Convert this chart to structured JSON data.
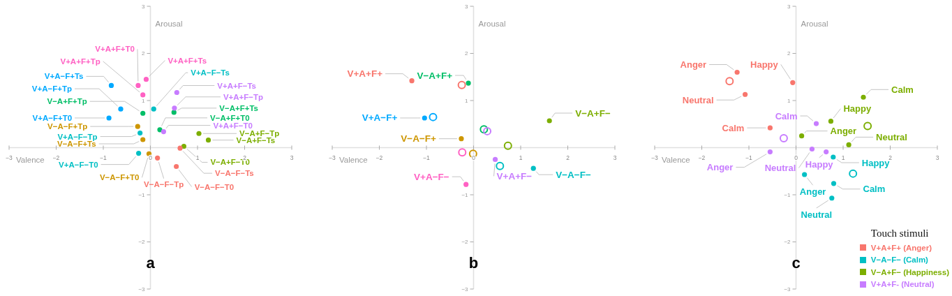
{
  "chart_data": [
    {
      "type": "scatter",
      "xlabel": "Valence",
      "ylabel": "Arousal",
      "xlim": [
        -3,
        3
      ],
      "ylim": [
        -3,
        3
      ],
      "xticks": [
        -3,
        -2,
        -1,
        0,
        1,
        2,
        3
      ],
      "yticks": [
        -3,
        -2,
        -1,
        1,
        2,
        3
      ],
      "marker": "circle",
      "series": [
        {
          "color": "#ff61c3",
          "x": [
            -0.26,
            -0.09,
            -0.16
          ],
          "values": [
            1.32,
            1.45,
            1.12
          ]
        },
        {
          "color": "#00a9ff",
          "x": [
            -0.83,
            -0.63,
            -0.88
          ],
          "values": [
            1.32,
            0.82,
            0.63
          ]
        },
        {
          "color": "#00be67",
          "x": [
            -0.16,
            0.5,
            0.2
          ],
          "values": [
            0.73,
            0.75,
            0.38
          ]
        },
        {
          "color": "#00bfc4",
          "x": [
            0.07,
            -0.22,
            -0.25
          ],
          "values": [
            0.82,
            0.31,
            -0.12
          ]
        },
        {
          "color": "#c77cff",
          "x": [
            0.56,
            0.51,
            0.28
          ],
          "values": [
            1.17,
            0.84,
            0.34
          ]
        },
        {
          "color": "#cd9600",
          "x": [
            -0.27,
            -0.16,
            -0.03
          ],
          "values": [
            0.45,
            0.17,
            -0.13
          ]
        },
        {
          "color": "#7cae00",
          "x": [
            1.03,
            1.23,
            0.71
          ],
          "values": [
            0.3,
            0.16,
            0.03
          ]
        },
        {
          "color": "#f8766d",
          "x": [
            0.63,
            0.15,
            0.55
          ],
          "values": [
            -0.01,
            -0.22,
            -0.4
          ]
        }
      ],
      "annotations": [
        {
          "text": "V+A+F+T0",
          "x": -0.26,
          "y": 1.32
        },
        {
          "text": "V+A+F+Ts",
          "x": -0.09,
          "y": 1.45
        },
        {
          "text": "V+A+F+Tp",
          "x": -0.16,
          "y": 1.12
        },
        {
          "text": "V+A−F+Ts",
          "x": -0.83,
          "y": 1.32
        },
        {
          "text": "V+A−F+Tp",
          "x": -0.63,
          "y": 0.82
        },
        {
          "text": "V+A−F+T0",
          "x": -0.88,
          "y": 0.63
        },
        {
          "text": "V−A+F+Tp",
          "x": -0.16,
          "y": 0.73
        },
        {
          "text": "V+A−F−Ts",
          "x": 0.07,
          "y": 0.82
        },
        {
          "text": "V+A+F−Ts",
          "x": 0.56,
          "y": 1.17
        },
        {
          "text": "V+A+F−Tp",
          "x": 0.51,
          "y": 0.84
        },
        {
          "text": "V−A+F+Ts",
          "x": 0.5,
          "y": 0.75
        },
        {
          "text": "V−A+F+T0",
          "x": 0.2,
          "y": 0.38
        },
        {
          "text": "V+A+F−T0",
          "x": 0.28,
          "y": 0.34
        },
        {
          "text": "V−A−F+Tp",
          "x": -0.27,
          "y": 0.45
        },
        {
          "text": "V+A−F−Tp",
          "x": -0.22,
          "y": 0.31
        },
        {
          "text": "V−A−F+Ts",
          "x": -0.16,
          "y": 0.17
        },
        {
          "text": "V−A+F−Tp",
          "x": 1.03,
          "y": 0.3
        },
        {
          "text": "V−A+F−Ts",
          "x": 1.23,
          "y": 0.16
        },
        {
          "text": "V−A+F−T0",
          "x": 0.71,
          "y": 0.03
        },
        {
          "text": "V−A−F−Ts",
          "x": 0.63,
          "y": -0.01
        },
        {
          "text": "V+A−F−T0",
          "x": -0.25,
          "y": -0.12
        },
        {
          "text": "V−A−F+T0",
          "x": -0.03,
          "y": -0.13
        },
        {
          "text": "V−A−F−Tp",
          "x": 0.15,
          "y": -0.22
        },
        {
          "text": "V−A−F−T0",
          "x": 0.55,
          "y": -0.4
        },
        "a"
      ]
    },
    {
      "type": "scatter",
      "xlabel": "Valence",
      "ylabel": "Arousal",
      "xlim": [
        -3,
        3
      ],
      "ylim": [
        -3,
        3
      ],
      "xticks": [
        -3,
        -2,
        -1,
        0,
        1,
        2,
        3
      ],
      "yticks": [
        -3,
        -2,
        -1,
        1,
        2,
        3
      ],
      "marker": "circle",
      "series": [
        {
          "color": "#f8766d",
          "x": [
            -1.31
          ],
          "values": [
            1.42
          ]
        },
        {
          "color": "#00be67",
          "x": [
            -0.11
          ],
          "values": [
            1.37
          ]
        },
        {
          "color": "#00a9ff",
          "x": [
            -1.04
          ],
          "values": [
            0.63
          ]
        },
        {
          "color": "#cd9600",
          "x": [
            -0.26
          ],
          "values": [
            0.19
          ]
        },
        {
          "color": "#7cae00",
          "x": [
            1.61
          ],
          "values": [
            0.57
          ]
        },
        {
          "color": "#c77cff",
          "x": [
            0.46
          ],
          "values": [
            -0.25
          ]
        },
        {
          "color": "#00bfc4",
          "x": [
            1.27
          ],
          "values": [
            -0.44
          ]
        },
        {
          "color": "#ff61c3",
          "x": [
            -0.16
          ],
          "values": [
            -0.78
          ]
        },
        {
          "colors": [
            "#f8766d",
            "#00a9ff",
            "#00be67",
            "#c77cff",
            "#7cae00",
            "#ff61c3",
            "#cd9600",
            "#00bfc4"
          ],
          "x": [
            -0.25,
            -0.86,
            0.22,
            0.29,
            0.73,
            -0.24,
            -0.01,
            0.56
          ],
          "values": [
            1.33,
            0.65,
            0.39,
            0.35,
            0.04,
            -0.1,
            -0.13,
            -0.39
          ]
        }
      ],
      "annotations": [
        {
          "text": "V+A+F+",
          "x": -1.31,
          "y": 1.42
        },
        {
          "text": "V−A+F+",
          "x": -0.11,
          "y": 1.37
        },
        {
          "text": "V+A−F+",
          "x": -1.04,
          "y": 0.63
        },
        {
          "text": "V−A−F+",
          "x": -0.26,
          "y": 0.19
        },
        {
          "text": "V−A+F−",
          "x": 1.61,
          "y": 0.57
        },
        {
          "text": "V+A+F−",
          "x": 0.46,
          "y": -0.25
        },
        {
          "text": "V−A−F−",
          "x": 1.27,
          "y": -0.44
        },
        {
          "text": "V+A−F−",
          "x": -0.16,
          "y": -0.78
        },
        "b"
      ]
    },
    {
      "type": "scatter",
      "xlabel": "Valence",
      "ylabel": "Arousal",
      "xlim": [
        -3,
        3
      ],
      "ylim": [
        -3,
        3
      ],
      "xticks": [
        -3,
        -2,
        -1,
        0,
        1,
        2,
        3
      ],
      "yticks": [
        -3,
        -2,
        -1,
        1,
        2,
        3
      ],
      "marker": "circle",
      "legend": "bottom right",
      "legend_title": "Touch stimuli",
      "series": [
        {
          "name": "V+A+F+ (Anger)",
          "color": "#f8766d",
          "x": [
            -1.25,
            -0.07,
            -1.08,
            -0.55
          ],
          "values": [
            1.6,
            1.38,
            1.13,
            0.42
          ]
        },
        {
          "name": "V−A−F− (Calm)",
          "color": "#00bfc4",
          "x": [
            0.79,
            0.18,
            0.8,
            0.76
          ],
          "values": [
            -0.2,
            -0.57,
            -0.76,
            -1.07
          ]
        },
        {
          "name": "V−A+F− (Happiness)",
          "color": "#7cae00",
          "x": [
            1.43,
            0.74,
            0.12,
            1.12
          ],
          "values": [
            1.07,
            0.56,
            0.25,
            0.06
          ]
        },
        {
          "name": "V+A+F- (Neutral)",
          "color": "#c77cff",
          "x": [
            0.43,
            -0.55,
            0.34,
            0.64
          ],
          "values": [
            0.51,
            -0.09,
            -0.03,
            -0.09
          ]
        },
        {
          "colors": [
            "#f8766d",
            "#7cae00",
            "#c77cff",
            "#00bfc4"
          ],
          "x": [
            -1.41,
            1.52,
            -0.26,
            1.21
          ],
          "values": [
            1.41,
            0.46,
            0.2,
            -0.55
          ]
        }
      ],
      "annotations": [
        {
          "text": "Anger",
          "x": -1.25,
          "y": 1.6
        },
        {
          "text": "Happy",
          "x": -0.07,
          "y": 1.38
        },
        {
          "text": "Neutral",
          "x": -1.08,
          "y": 1.13
        },
        {
          "text": "Calm",
          "x": -0.55,
          "y": 0.42
        },
        {
          "text": "Happy",
          "x": 0.79,
          "y": -0.2
        },
        {
          "text": "Anger",
          "x": 0.18,
          "y": -0.57
        },
        {
          "text": "Calm",
          "x": 0.8,
          "y": -0.76
        },
        {
          "text": "Neutral",
          "x": 0.76,
          "y": -1.07
        },
        {
          "text": "Calm",
          "x": 1.43,
          "y": 1.07
        },
        {
          "text": "Happy",
          "x": 0.74,
          "y": 0.56
        },
        {
          "text": "Anger",
          "x": 0.12,
          "y": 0.25
        },
        {
          "text": "Neutral",
          "x": 1.12,
          "y": 0.06
        },
        {
          "text": "Calm",
          "x": 0.43,
          "y": 0.51
        },
        {
          "text": "Anger",
          "x": -0.55,
          "y": -0.09
        },
        {
          "text": "Neutral",
          "x": 0.34,
          "y": -0.03
        },
        {
          "text": "Happy",
          "x": 0.64,
          "y": -0.09
        },
        "c"
      ]
    }
  ]
}
